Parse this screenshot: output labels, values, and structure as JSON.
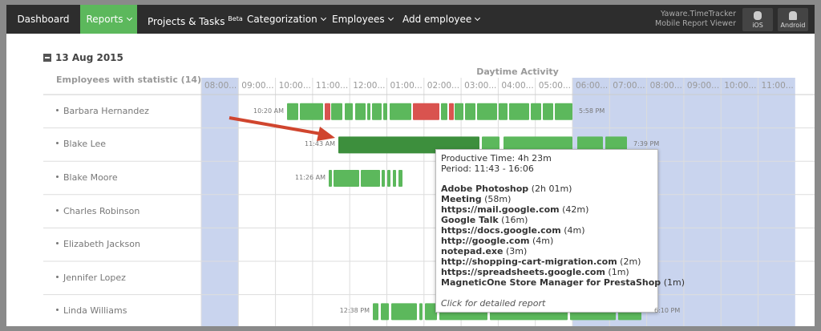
{
  "nav": {
    "items": [
      "Dashboard",
      "Reports",
      "Projects & Tasks",
      "Categorization",
      "Employees",
      "Add employee"
    ],
    "beta": "Beta",
    "app": [
      "Yaware.TimeTracker",
      "Mobile Report Viewer"
    ],
    "platforms": [
      "iOS",
      "Android"
    ]
  },
  "date": "13 Aug 2015",
  "table": {
    "employees_header": "Employees with statistic (14)",
    "activity_header": "Daytime Activity",
    "hours": [
      "08:00...",
      "09:00...",
      "10:00...",
      "11:00...",
      "12:00...",
      "01:00...",
      "02:00...",
      "03:00...",
      "04:00...",
      "05:00...",
      "06:00...",
      "07:00...",
      "08:00...",
      "09:00...",
      "10:00...",
      "11:00..."
    ],
    "rows": [
      {
        "name": "Barbara Hernandez",
        "start": "10:20 AM",
        "end": "5:58 PM"
      },
      {
        "name": "Blake Lee",
        "start": "11:43 AM",
        "end": "7:39 PM"
      },
      {
        "name": "Blake Moore",
        "start": "11:26 AM"
      },
      {
        "name": "Charles Robinson"
      },
      {
        "name": "Elizabeth Jackson"
      },
      {
        "name": "Jennifer Lopez"
      },
      {
        "name": "Linda Williams",
        "start": "12:38 PM",
        "end": "6:10 PM"
      }
    ]
  },
  "tooltip": {
    "productive": "Productive Time: 4h 23m",
    "period": "Period: 11:43 - 16:06",
    "apps": [
      {
        "name": "Adobe Photoshop",
        "time": "(2h 01m)"
      },
      {
        "name": "Meeting",
        "time": "(58m)"
      },
      {
        "name": "https://mail.google.com",
        "time": "(42m)"
      },
      {
        "name": "Google Talk",
        "time": "(16m)"
      },
      {
        "name": "https://docs.google.com",
        "time": "(4m)"
      },
      {
        "name": "http://google.com",
        "time": "(4m)"
      },
      {
        "name": "notepad.exe",
        "time": "(3m)"
      },
      {
        "name": "http://shopping-cart-migration.com",
        "time": "(2m)"
      },
      {
        "name": "https://spreadsheets.google.com",
        "time": "(1m)"
      },
      {
        "name": "MagneticOne Store Manager for PrestaShop",
        "time": "(1m)"
      }
    ],
    "footer": "Click for detailed report"
  }
}
